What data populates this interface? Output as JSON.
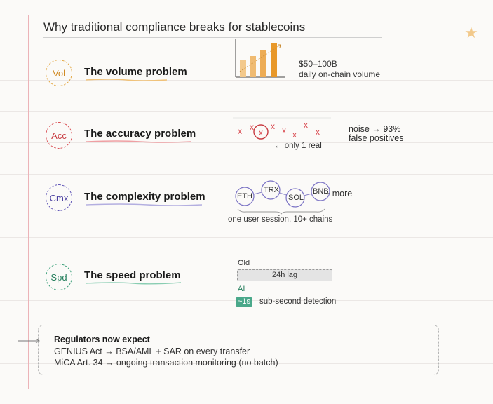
{
  "title": "Why traditional compliance breaks for stablecoins",
  "colors": {
    "volume": "#e2a33a",
    "accuracy": "#d9494f",
    "complexity": "#5a4fb5",
    "speed": "#2f9a72",
    "margin_line": "#ecb3b8",
    "star": "#f2c98b"
  },
  "problems": {
    "volume": {
      "badge": "Vol",
      "title": "The volume problem",
      "stat_line1": "$50–100B",
      "stat_line2": "daily on-chain volume"
    },
    "accuracy": {
      "badge": "Acc",
      "title": "The accuracy problem",
      "pointer": "← only 1 real",
      "note_line1": "noise → 93%",
      "note_line2": "false positives"
    },
    "complexity": {
      "badge": "Cmx",
      "title": "The complexity problem",
      "chains": [
        "ETH",
        "TRX",
        "SOL",
        "BNB"
      ],
      "more": "+ more",
      "caption": "one user session, 10+ chains"
    },
    "speed": {
      "badge": "Spd",
      "title": "The speed problem",
      "old_label": "Old",
      "old_value": "24h lag",
      "ai_label": "AI",
      "ai_value": "~1s",
      "ai_desc": "sub-second detection"
    }
  },
  "regulators": {
    "heading": "Regulators now expect",
    "line1": "GENIUS Act → BSA/AML + SAR on every transfer",
    "line2": "MiCA Art. 34 → ongoing transaction monitoring (no batch)"
  }
}
